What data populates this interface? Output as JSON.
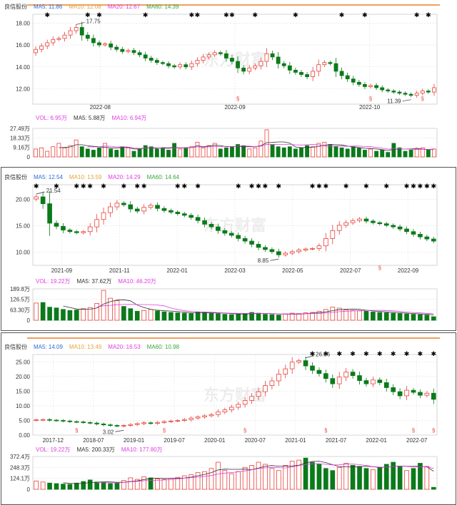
{
  "colors": {
    "up": "#e8413a",
    "down": "#0b7a1a",
    "ma5": "#2c6cd6",
    "ma10": "#e3a33c",
    "ma20": "#e23ce0",
    "ma60": "#35a63a",
    "vol_ma5": "#333333",
    "vol_ma10": "#e23ce0",
    "grid": "#dddddd",
    "separator": "#f0a060",
    "flag": "#000000",
    "marker": "#e8413a"
  },
  "stock_name": "良信股份",
  "watermark": "东方财富",
  "chart_data": [
    {
      "type": "candlestick",
      "period": "daily",
      "legend": {
        "ma5": "MA5: 11.86",
        "ma10": "MA10: 12.08",
        "ma20": "MA20: 12.67",
        "ma60": "MA60: 14.39"
      },
      "y_ticks": [
        "18.00",
        "16.00",
        "14.00",
        "12.00"
      ],
      "ylim": [
        10.6,
        18.8
      ],
      "x_labels": [
        "2022-08",
        "2022-09",
        "2022-10"
      ],
      "annotations": {
        "high": "17.75",
        "low": "11.39"
      },
      "vol_legend": {
        "vol": "VOL: 6.95万",
        "ma5": "MA5: 5.88万",
        "ma10": "MA10: 6.94万"
      },
      "vol_ticks": [
        "27.49万",
        "18.33万",
        "9.16万",
        "0"
      ],
      "vol_max": 27.49,
      "close": [
        15.6,
        15.9,
        16.2,
        16.5,
        16.6,
        16.9,
        17.3,
        17.6,
        16.9,
        16.6,
        16.2,
        16.0,
        16.1,
        15.8,
        15.6,
        15.4,
        15.5,
        15.3,
        15.1,
        14.8,
        14.6,
        14.4,
        14.3,
        14.1,
        14.0,
        14.2,
        14.0,
        14.3,
        14.6,
        14.9,
        15.1,
        15.3,
        15.2,
        14.8,
        14.5,
        13.9,
        13.6,
        13.9,
        14.1,
        14.5,
        15.2,
        14.9,
        14.3,
        14.1,
        13.7,
        13.5,
        13.3,
        13.1,
        13.6,
        14.2,
        14.4,
        14.3,
        13.6,
        13.2,
        12.9,
        12.6,
        12.4,
        12.2,
        12.3,
        12.1,
        11.9,
        11.8,
        11.7,
        11.6,
        11.5,
        11.4,
        11.6,
        11.8,
        11.7,
        12.1
      ],
      "volume": [
        7,
        8,
        5,
        9,
        12,
        8,
        10,
        15,
        9,
        7,
        6,
        8,
        12,
        7,
        6,
        9,
        8,
        5,
        7,
        10,
        9,
        7,
        8,
        6,
        12,
        7,
        8,
        9,
        13,
        8,
        10,
        12,
        7,
        8,
        9,
        11,
        10,
        7,
        8,
        14,
        24,
        11,
        9,
        8,
        9,
        7,
        8,
        10,
        9,
        12,
        13,
        11,
        9,
        8,
        7,
        9,
        8,
        6,
        7,
        5,
        6,
        4,
        12,
        8,
        5,
        6,
        7,
        8,
        6,
        7
      ]
    },
    {
      "type": "candlestick",
      "period": "weekly",
      "legend": {
        "ma5": "MA5: 12.54",
        "ma10": "MA10: 13.59",
        "ma20": "MA20: 14.29",
        "ma60": "MA60: 14.64"
      },
      "y_ticks": [
        "20.00",
        "15.00",
        "10.00"
      ],
      "ylim": [
        7.5,
        22.8
      ],
      "x_labels": [
        "2021-09",
        "2021-11",
        "2022-01",
        "2022-03",
        "2022-05",
        "2022-07",
        "2022-09"
      ],
      "annotations": {
        "high": "21.54",
        "low": "8.85"
      },
      "vol_legend": {
        "vol": "VOL: 19.22万",
        "ma5": "MA5: 37.62万",
        "ma10": "MA10: 46.20万"
      },
      "vol_ticks": [
        "189.8万",
        "126.5万",
        "63.30万",
        "0"
      ],
      "vol_max": 189.8,
      "close": [
        20.5,
        19.2,
        15.5,
        14.9,
        14.2,
        13.9,
        13.7,
        13.9,
        14.8,
        16.2,
        17.5,
        18.6,
        19.3,
        19.0,
        18.2,
        17.8,
        18.5,
        18.9,
        18.3,
        17.9,
        17.6,
        17.3,
        17.0,
        16.6,
        16.0,
        15.3,
        14.8,
        14.1,
        13.6,
        13.2,
        12.6,
        12.1,
        11.5,
        10.9,
        10.5,
        10.1,
        9.5,
        9.8,
        10.1,
        10.4,
        10.6,
        10.7,
        11.2,
        12.6,
        14.1,
        15.1,
        15.6,
        16.0,
        16.3,
        15.9,
        15.6,
        15.4,
        15.1,
        14.8,
        14.4,
        13.9,
        13.4,
        12.9,
        12.5,
        12.1
      ],
      "volume": [
        92,
        95,
        70,
        66,
        58,
        52,
        55,
        62,
        68,
        90,
        160,
        118,
        105,
        74,
        62,
        48,
        52,
        58,
        50,
        45,
        42,
        40,
        38,
        36,
        44,
        42,
        38,
        35,
        32,
        30,
        34,
        36,
        42,
        38,
        32,
        30,
        28,
        34,
        38,
        36,
        40,
        42,
        48,
        58,
        70,
        65,
        55,
        52,
        50,
        48,
        44,
        42,
        40,
        38,
        36,
        34,
        32,
        30,
        28,
        19
      ]
    },
    {
      "type": "candlestick",
      "period": "monthly",
      "legend": {
        "ma5": "MA5: 14.09",
        "ma10": "MA10: 13.49",
        "ma20": "MA20: 16.53",
        "ma60": "MA60: 10.98"
      },
      "y_ticks": [
        "25.00",
        "20.00",
        "15.00",
        "10.00",
        "5.00",
        "0.00"
      ],
      "ylim": [
        0,
        27.5
      ],
      "x_labels": [
        "2017-12",
        "2018-07",
        "2019-01",
        "2019-07",
        "2020-01",
        "2020-07",
        "2021-01",
        "2021-07",
        "2022-01",
        "2022-07"
      ],
      "annotations": {
        "high": "26.06",
        "low": "3.02"
      },
      "vol_legend": {
        "vol": "VOL: 19.22万",
        "ma5": "MA5: 200.33万",
        "ma10": "MA10: 177.80万"
      },
      "vol_ticks": [
        "372.4万",
        "248.3万",
        "124.1万",
        "0"
      ],
      "vol_max": 372.4,
      "close": [
        5.2,
        5.3,
        5.1,
        5.0,
        4.8,
        4.6,
        4.5,
        4.3,
        4.1,
        3.8,
        3.5,
        3.3,
        3.1,
        3.3,
        3.6,
        3.9,
        4.2,
        4.0,
        4.3,
        4.6,
        4.8,
        5.0,
        5.3,
        5.8,
        6.2,
        6.6,
        7.0,
        7.9,
        8.6,
        9.5,
        10.5,
        11.8,
        13.2,
        14.8,
        16.9,
        18.5,
        20.8,
        22.6,
        24.9,
        25.4,
        23.6,
        22.1,
        21.0,
        19.3,
        17.5,
        19.8,
        21.5,
        20.3,
        18.6,
        17.5,
        18.8,
        17.9,
        16.2,
        14.8,
        13.4,
        15.3,
        14.6,
        13.6,
        14.3,
        12.2
      ],
      "volume": [
        80,
        70,
        60,
        55,
        50,
        48,
        60,
        75,
        90,
        70,
        65,
        55,
        60,
        85,
        110,
        95,
        120,
        110,
        100,
        95,
        105,
        115,
        130,
        140,
        160,
        170,
        200,
        260,
        180,
        150,
        170,
        210,
        230,
        260,
        240,
        200,
        180,
        230,
        270,
        280,
        300,
        260,
        240,
        200,
        180,
        210,
        250,
        230,
        220,
        200,
        190,
        210,
        240,
        260,
        220,
        180,
        200,
        250,
        220,
        19
      ]
    }
  ]
}
